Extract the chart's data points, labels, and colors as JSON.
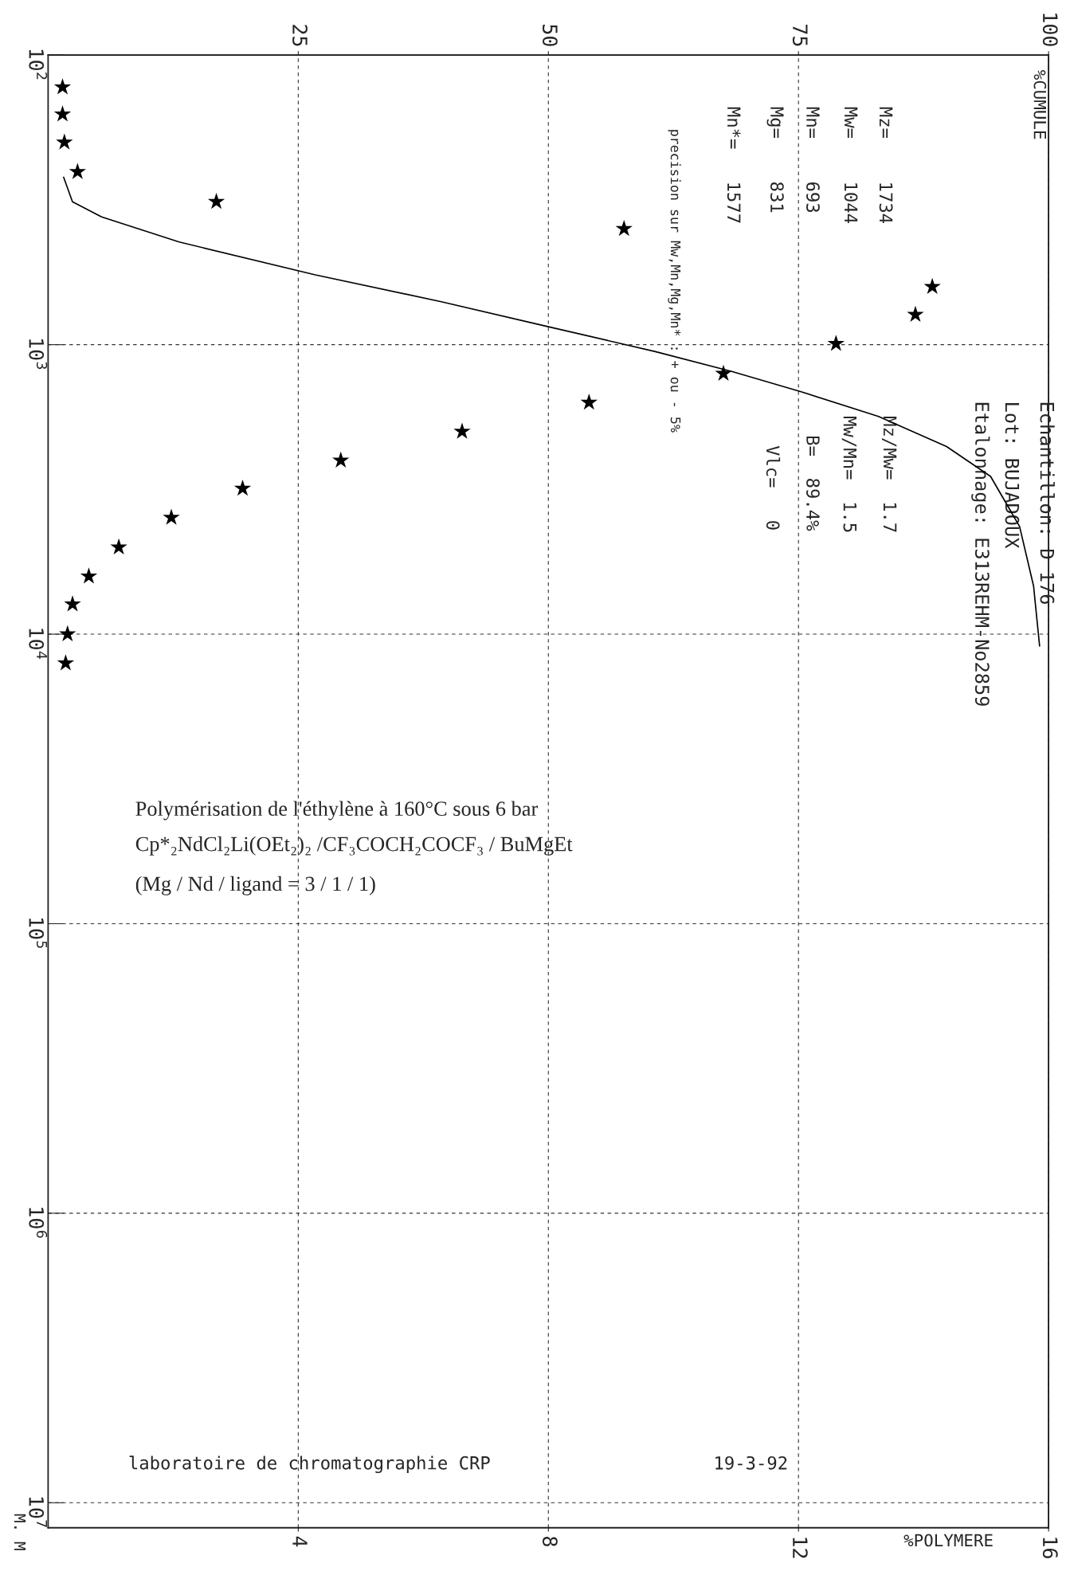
{
  "chart_data": {
    "type": "scatter",
    "x2label": "%CUMULE",
    "xlabel": "%POLYMERE",
    "ylabel": "M. M",
    "xlim": [
      0,
      16
    ],
    "xticks": [
      4,
      8,
      12,
      16
    ],
    "x2lim": [
      0,
      100
    ],
    "x2ticks": [
      25,
      50,
      75,
      100
    ],
    "log": "y",
    "ylim": [
      12200000,
      100
    ],
    "yticks": [
      {
        "value": 100,
        "label": "10$^{2}$"
      },
      {
        "value": 1000,
        "label": "10$^{3}$"
      },
      {
        "value": 10000,
        "label": "10$^{4}$"
      },
      {
        "value": 100000,
        "label": "10$^{5}$"
      },
      {
        "value": 1000000,
        "label": "10$^{6}$"
      },
      {
        "value": 10000000,
        "label": "10$^{7}$"
      }
    ],
    "grid": true,
    "legend": false,
    "series": [
      {
        "type": "line",
        "axis": "x2",
        "color": "#000000",
        "line_style": "solid",
        "marker": "none",
        "x": [
          1.55,
          2.43,
          5.34,
          13.1,
          26.7,
          39.3,
          50.0,
          60.7,
          68.4,
          75.2,
          83.0,
          89.8,
          94.2,
          97.1,
          98.5,
          99.1
        ],
        "values": [
          264,
          321,
          362,
          442,
          574,
          711,
          867,
          1057,
          1239,
          1452,
          1770,
          2249,
          2851,
          4246,
          6823,
          10990
        ]
      },
      {
        "color": "#000000",
        "marker": "star",
        "x": [
          0.23,
          0.23,
          0.26,
          0.47,
          2.69,
          9.21,
          14.14,
          13.87,
          12.6,
          10.8,
          8.65,
          6.62,
          4.68,
          3.11,
          1.97,
          1.13,
          0.65,
          0.39,
          0.31,
          0.28
        ],
        "values": [
          129,
          160,
          200,
          253,
          321,
          398,
          631,
          788,
          993,
          1259,
          1585,
          1995,
          2512,
          3140,
          3955,
          5012,
          6310,
          7880,
          10000,
          12590
        ]
      }
    ],
    "annotations": [
      "Echantillon: D 176",
      "Lot: BUJADOUX",
      "Etalonnage: E313REHM-No2859",
      "Mz=    1734",
      "Mw=    1044",
      "Mn=    693",
      "Mg=    831",
      "Mn*=   1577",
      "precision sur Mw,Mn,Mg,Mn* : + ou - 5%",
      "Mz/Mw=  1.7",
      "Mw/Mn=  1.5",
      "B=  89.4%",
      "Vlc=   0",
      "Polymérisation de l'éthylène à 160°C sous 6 bar",
      "Cp*₂NdCl₂Li(OEt₂)₂ /CF₃COCH₂COCF₃ / BuMgEt",
      "(Mg / Nd / ligand = 3 / 1 / 1)",
      "laboratoire de chromatographie CRP",
      "19-3-92"
    ]
  }
}
